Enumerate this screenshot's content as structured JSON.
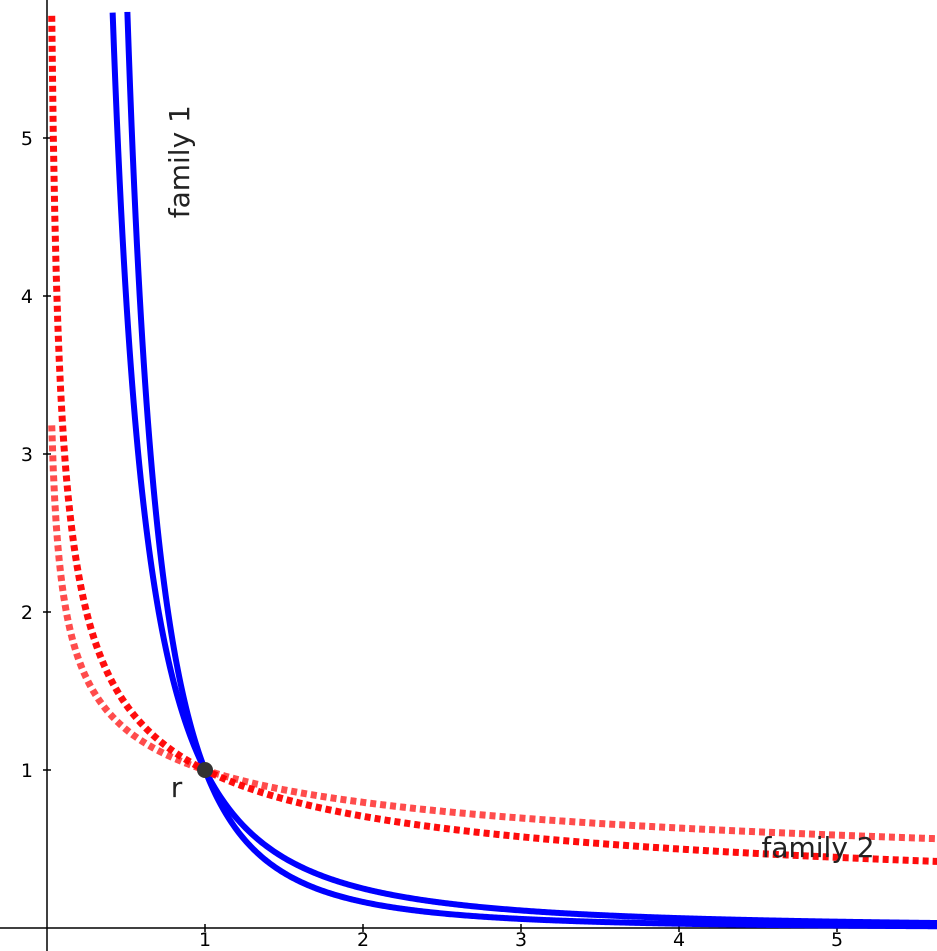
{
  "chart_data": {
    "type": "line",
    "title": "",
    "xlabel": "",
    "ylabel": "",
    "xlim": [
      -0.02,
      5.7
    ],
    "ylim": [
      -0.1,
      5.85
    ],
    "grid": false,
    "legend": "none",
    "x_ticks": [
      {
        "value": 1,
        "label": "1"
      },
      {
        "value": 2,
        "label": "2"
      },
      {
        "value": 3,
        "label": "3"
      },
      {
        "value": 4,
        "label": "4"
      },
      {
        "value": 5,
        "label": "5"
      }
    ],
    "y_ticks": [
      {
        "value": 1,
        "label": "1"
      },
      {
        "value": 2,
        "label": "2"
      },
      {
        "value": 3,
        "label": "3"
      },
      {
        "value": 4,
        "label": "4"
      },
      {
        "value": 5,
        "label": "5"
      }
    ],
    "series": [
      {
        "group": "family 1",
        "style": "solid",
        "color": "#0000ff",
        "exponent": -2.0,
        "x_from": 0.38,
        "x_to": 5.7
      },
      {
        "group": "family 1",
        "style": "solid",
        "color": "#0000ff",
        "exponent": -2.6,
        "x_from": 0.5,
        "x_to": 5.7
      },
      {
        "group": "family 2",
        "style": "dotted",
        "color": "#ff0000",
        "exponent": -0.5,
        "x_from": 0.03,
        "x_to": 5.7
      },
      {
        "group": "family 2",
        "style": "dotted",
        "color": "#ff0000",
        "exponent": -0.33,
        "x_from": 0.03,
        "x_to": 5.7
      }
    ],
    "point": {
      "label": "r",
      "x": 1,
      "y": 1,
      "color": "#333333"
    },
    "annotations": [
      {
        "text": "family 1",
        "x": 0.9,
        "y": 4.85,
        "rotate": -90
      },
      {
        "text": "family 2",
        "x": 4.88,
        "y": 0.45,
        "rotate": 0
      },
      {
        "text": "r",
        "x": 0.82,
        "y": 0.83,
        "rotate": 0
      }
    ]
  }
}
